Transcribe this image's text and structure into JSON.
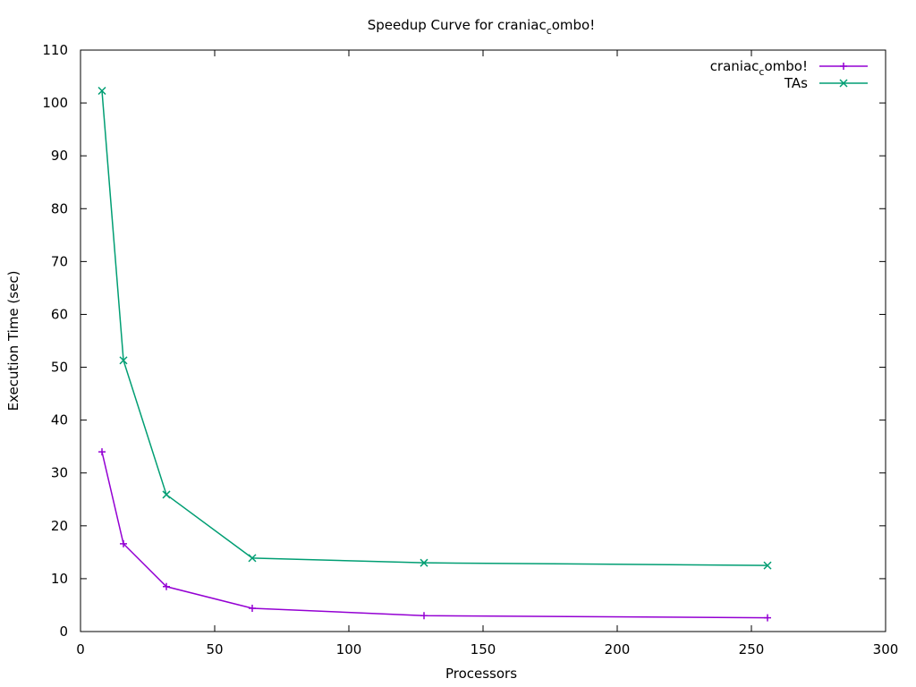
{
  "chart_data": {
    "type": "line",
    "title": "Speedup Curve for craniac",
    "title_sub": "c",
    "title_tail": "ombo!",
    "xlabel": "Processors",
    "ylabel": "Execution Time (sec)",
    "xlim": [
      0,
      300
    ],
    "ylim": [
      0,
      110
    ],
    "xticks": [
      0,
      50,
      100,
      150,
      200,
      250,
      300
    ],
    "yticks": [
      0,
      10,
      20,
      30,
      40,
      50,
      60,
      70,
      80,
      90,
      100,
      110
    ],
    "grid": false,
    "legend_position": "top-right",
    "series": [
      {
        "name": "craniac",
        "name_sub": "c",
        "name_tail": "ombo!",
        "color": "#9400d3",
        "marker": "plus",
        "x": [
          8,
          16,
          32,
          64,
          128,
          256
        ],
        "y": [
          34.0,
          16.6,
          8.5,
          4.4,
          3.0,
          2.6
        ]
      },
      {
        "name": "TAs",
        "name_sub": "",
        "name_tail": "",
        "color": "#009e73",
        "marker": "cross",
        "x": [
          8,
          16,
          32,
          64,
          128,
          256
        ],
        "y": [
          102.3,
          51.3,
          25.9,
          13.9,
          13.0,
          12.5
        ]
      }
    ]
  }
}
